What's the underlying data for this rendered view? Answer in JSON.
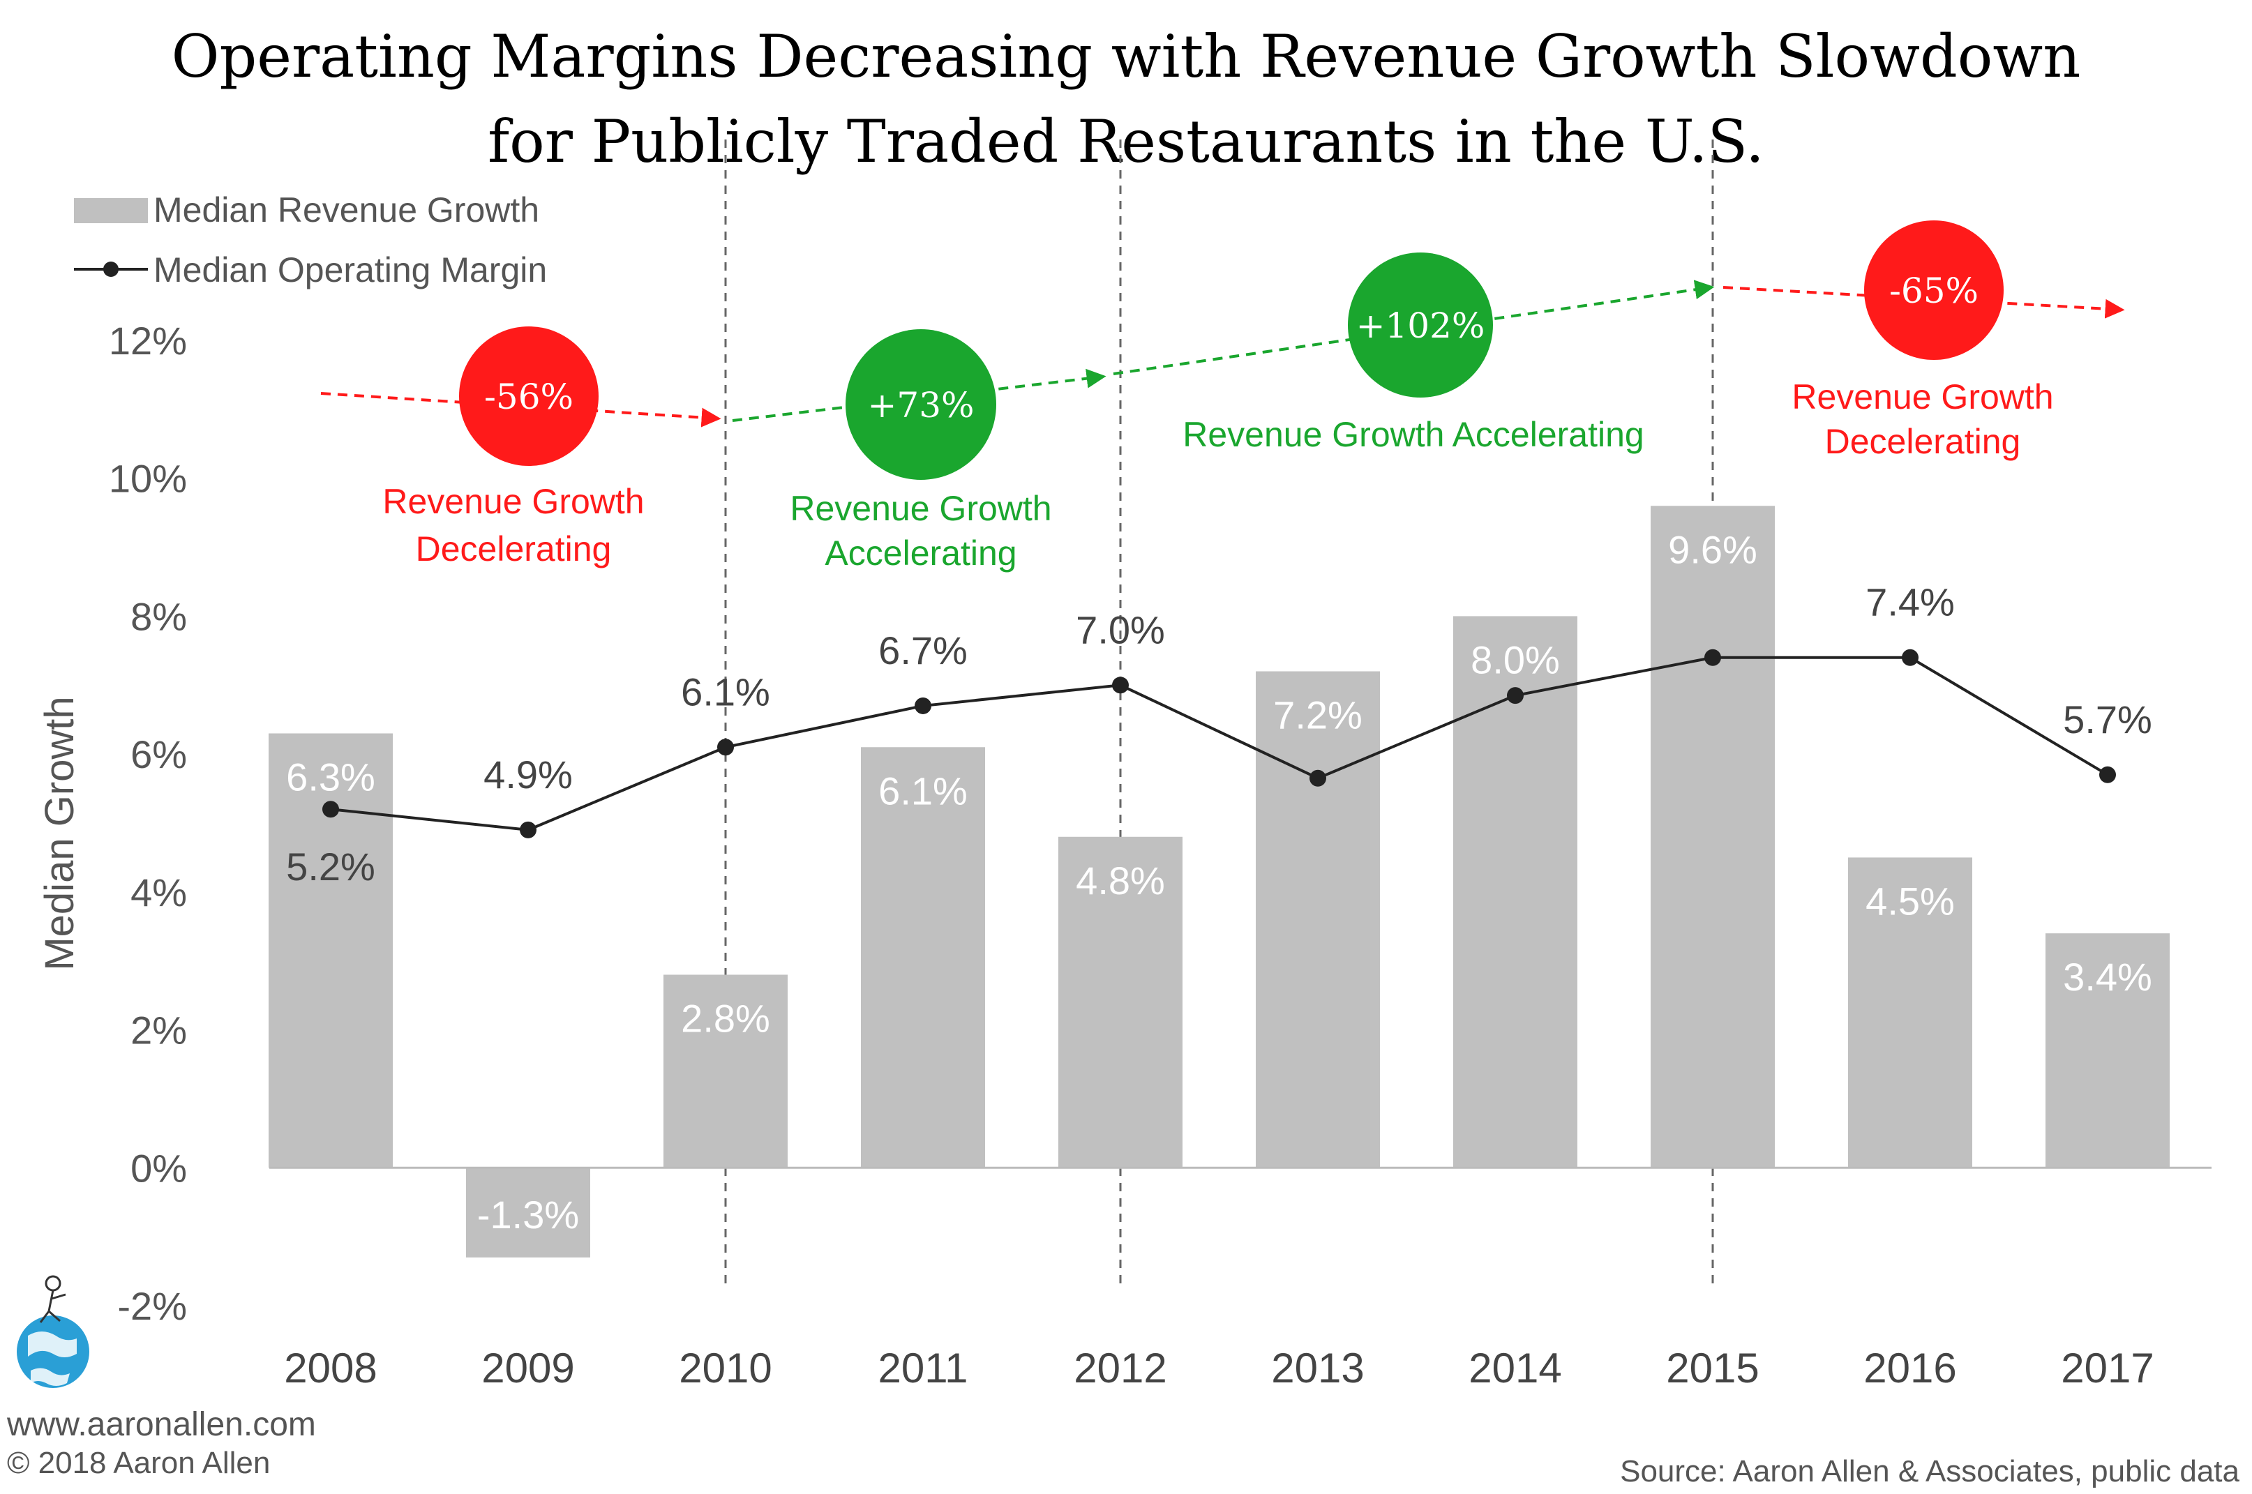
{
  "title_line1": "Operating Margins Decreasing with Revenue Growth Slowdown",
  "title_line2": "for Publicly Traded Restaurants in the U.S.",
  "legend": {
    "bar_series": "Median Revenue Growth",
    "line_series": "Median Operating Margin"
  },
  "ylabel": "Median Growth",
  "footer": {
    "website": "www.aaronallen.com",
    "copyright": "© 2018 Aaron Allen",
    "source": "Source: Aaron Allen & Associates, public data"
  },
  "colors": {
    "bar": "#c0c0c0",
    "line": "#222222",
    "decel": "#ff1a1a",
    "accel": "#1aa62e"
  },
  "chart_data": {
    "type": "bar",
    "categories": [
      "2008",
      "2009",
      "2010",
      "2011",
      "2012",
      "2013",
      "2014",
      "2015",
      "2016",
      "2017"
    ],
    "ylim": [
      -2,
      12
    ],
    "yticks": [
      "-2%",
      "0%",
      "2%",
      "4%",
      "6%",
      "8%",
      "10%",
      "12%"
    ],
    "series": [
      {
        "name": "Median Revenue Growth",
        "type": "bar",
        "values": [
          6.3,
          -1.3,
          2.8,
          6.1,
          4.8,
          7.2,
          8.0,
          9.6,
          4.5,
          3.4
        ],
        "labels": [
          "6.3%",
          "-1.3%",
          "2.8%",
          "6.1%",
          "4.8%",
          "7.2%",
          "8.0%",
          "9.6%",
          "4.5%",
          "3.4%"
        ]
      },
      {
        "name": "Median Operating Margin",
        "type": "line",
        "values": [
          5.2,
          4.9,
          6.1,
          6.7,
          7.0,
          5.65,
          6.85,
          7.4,
          7.4,
          5.7
        ],
        "labels": [
          "5.2%",
          "4.9%",
          "6.1%",
          "6.7%",
          "7.0%",
          "",
          "",
          "",
          "7.4%",
          "5.7%"
        ]
      }
    ],
    "dividers": [
      "2010",
      "2012",
      "2015"
    ],
    "annotations": [
      {
        "pct": "-56%",
        "kind": "decel",
        "text1": "Revenue Growth",
        "text2": "Decelerating"
      },
      {
        "pct": "+73%",
        "kind": "accel",
        "text1": "Revenue Growth",
        "text2": "Accelerating"
      },
      {
        "pct": "+102%",
        "kind": "accel",
        "text1": "Revenue Growth Accelerating",
        "text2": ""
      },
      {
        "pct": "-65%",
        "kind": "decel",
        "text1": "Revenue Growth",
        "text2": "Decelerating"
      }
    ]
  }
}
